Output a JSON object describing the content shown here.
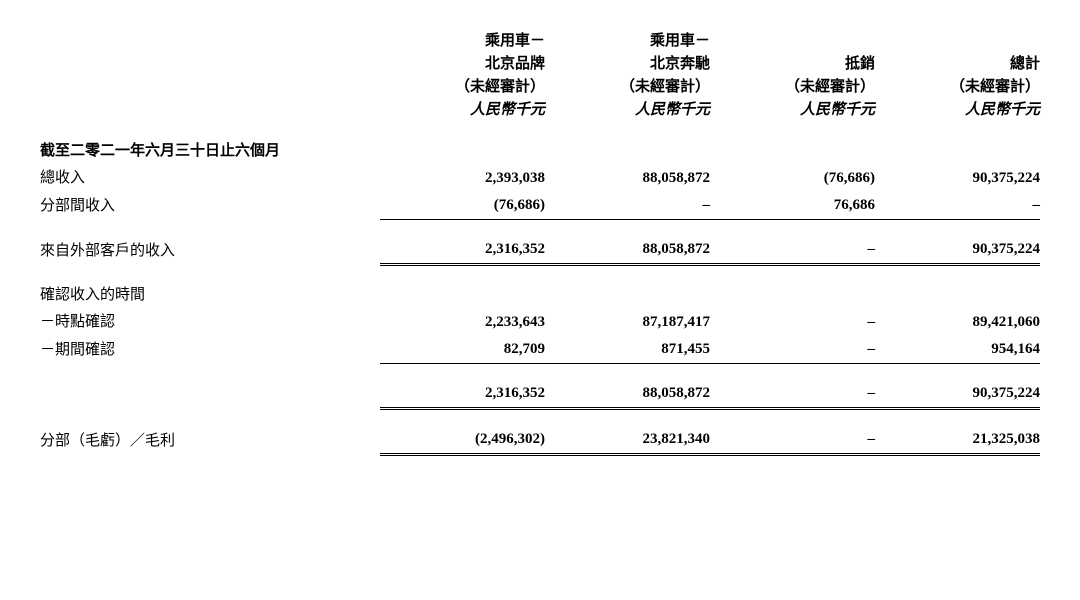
{
  "headers": {
    "col1_l1": "乘用車－",
    "col1_l2": "北京品牌",
    "col1_l3": "（未經審計）",
    "col1_l4": "人民幣千元",
    "col2_l1": "乘用車－",
    "col2_l2": "北京奔馳",
    "col2_l3": "（未經審計）",
    "col2_l4": "人民幣千元",
    "col3_l2": "抵銷",
    "col3_l3": "（未經審計）",
    "col3_l4": "人民幣千元",
    "col4_l2": "總計",
    "col4_l3": "（未經審計）",
    "col4_l4": "人民幣千元"
  },
  "labels": {
    "period": "截至二零二一年六月三十日止六個月",
    "total_rev": "總收入",
    "interseg": "分部間收入",
    "external": "來自外部客戶的收入",
    "timing": "確認收入的時間",
    "point": "－時點確認",
    "period_rec": "－期間確認",
    "gross": "分部（毛虧）／毛利"
  },
  "total_rev": {
    "c1": "2,393,038",
    "c2": "88,058,872",
    "c3": "(76,686)",
    "c4": "90,375,224"
  },
  "interseg": {
    "c1": "(76,686)",
    "c2": "–",
    "c3": "76,686",
    "c4": "–"
  },
  "external": {
    "c1": "2,316,352",
    "c2": "88,058,872",
    "c3": "–",
    "c4": "90,375,224"
  },
  "point": {
    "c1": "2,233,643",
    "c2": "87,187,417",
    "c3": "–",
    "c4": "89,421,060"
  },
  "period_rec": {
    "c1": "82,709",
    "c2": "871,455",
    "c3": "–",
    "c4": "954,164"
  },
  "subtotal": {
    "c1": "2,316,352",
    "c2": "88,058,872",
    "c3": "–",
    "c4": "90,375,224"
  },
  "gross": {
    "c1": "(2,496,302)",
    "c2": "23,821,340",
    "c3": "–",
    "c4": "21,325,038"
  }
}
